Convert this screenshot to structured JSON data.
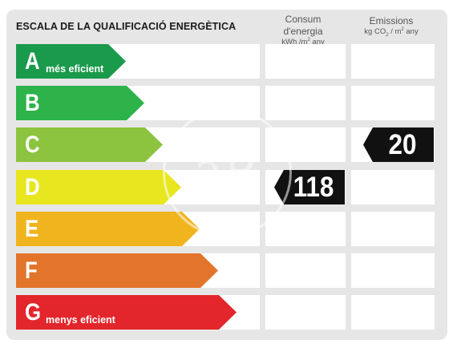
{
  "title": "ESCALA DE LA QUALIFICACIÓ ENERGÈTICA",
  "columns": {
    "consum": {
      "label": "Consum d'energia",
      "unit_prefix": "kWh /m",
      "unit_sup": "2",
      "unit_suffix": " any"
    },
    "emissions": {
      "label": "Emissions",
      "unit_prefix": "kg CO",
      "unit_sub": "2",
      "unit_mid": " / m",
      "unit_sup": "2",
      "unit_suffix": " any"
    }
  },
  "scale": [
    {
      "letter": "A",
      "sublabel": "més eficient",
      "color": "#1a9a4b"
    },
    {
      "letter": "B",
      "sublabel": "",
      "color": "#2db34a"
    },
    {
      "letter": "C",
      "sublabel": "",
      "color": "#8cc43f"
    },
    {
      "letter": "D",
      "sublabel": "",
      "color": "#e8e61e"
    },
    {
      "letter": "E",
      "sublabel": "",
      "color": "#f0b41e"
    },
    {
      "letter": "F",
      "sublabel": "",
      "color": "#e2742b"
    },
    {
      "letter": "G",
      "sublabel": "menys eficient",
      "color": "#e2262b"
    }
  ],
  "consum_rating": {
    "letter": "D",
    "value": "118"
  },
  "emissions_rating": {
    "letter": "C",
    "value": "20"
  },
  "watermark": "aP"
}
